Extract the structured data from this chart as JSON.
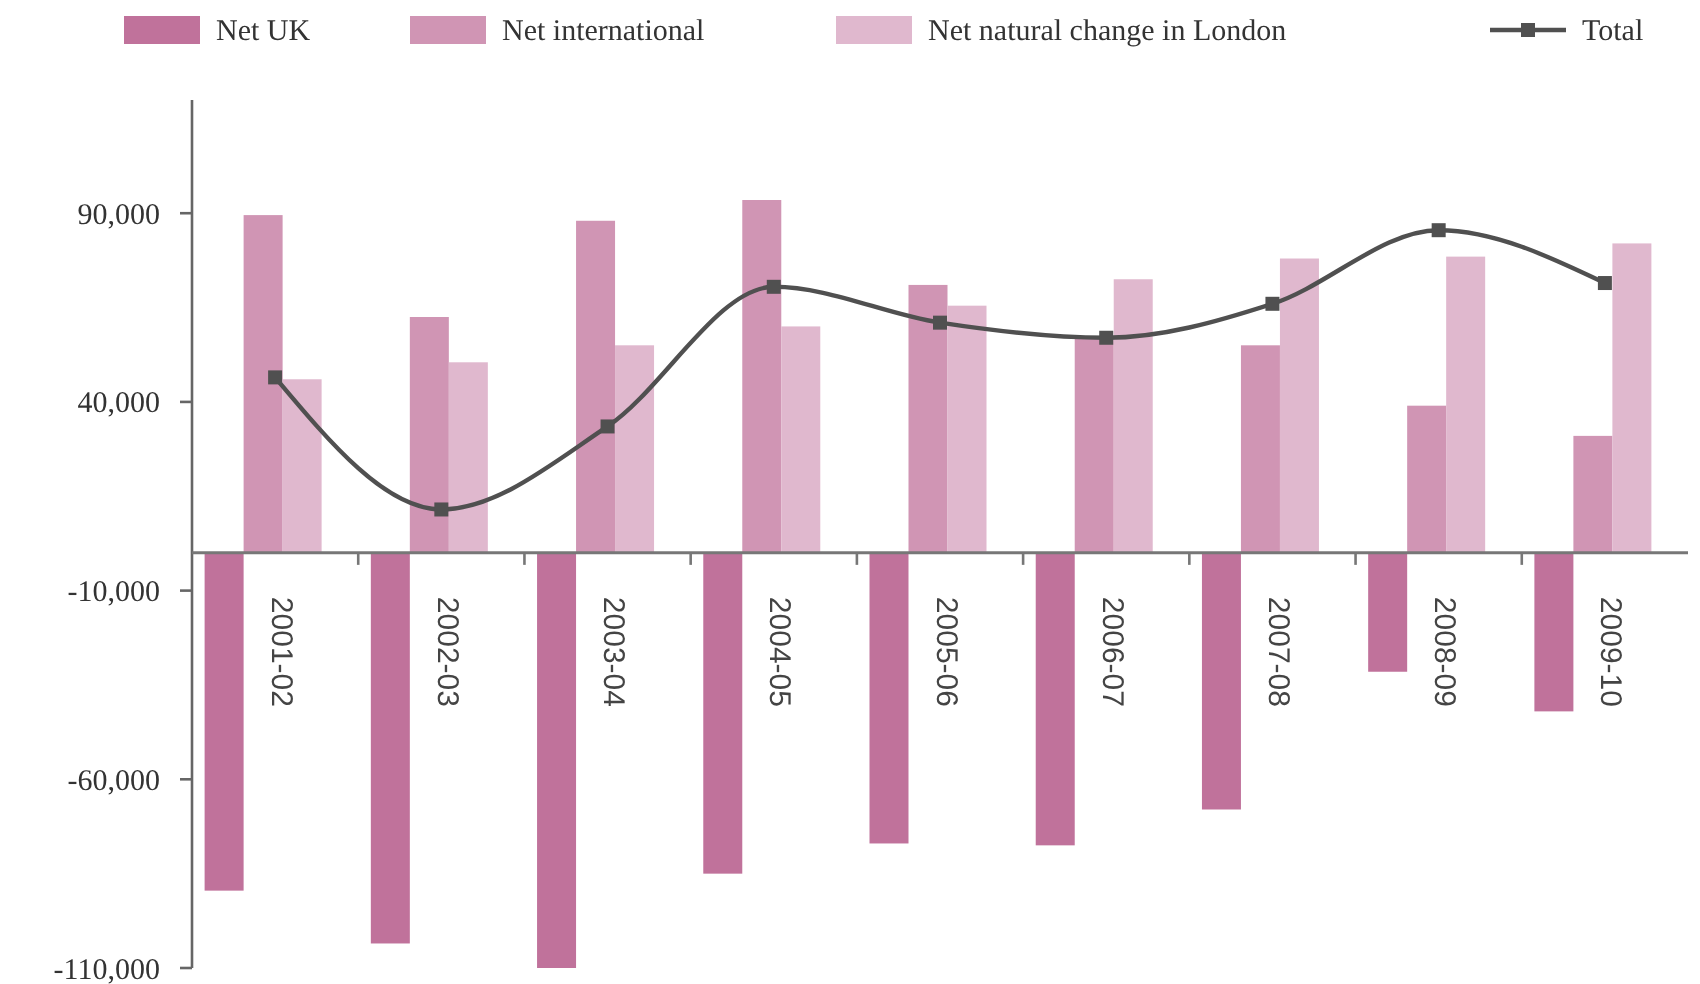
{
  "chart_data": {
    "type": "bar",
    "categories": [
      "2001-02",
      "2002-03",
      "2003-04",
      "2004-05",
      "2005-06",
      "2006-07",
      "2007-08",
      "2008-09",
      "2009-10"
    ],
    "series": [
      {
        "name": "Net UK",
        "color": "#c0729b",
        "values": [
          -89500,
          -103500,
          -110000,
          -85000,
          -77000,
          -77500,
          -68000,
          -31500,
          -42000
        ]
      },
      {
        "name": "Net international",
        "color": "#d095b4",
        "values": [
          89500,
          62500,
          88000,
          93500,
          71000,
          57000,
          55000,
          39000,
          31000
        ]
      },
      {
        "name": "Net natural change in London",
        "color": "#e0b8ce",
        "values": [
          46000,
          50500,
          55000,
          60000,
          65500,
          72500,
          78000,
          78500,
          82000
        ]
      },
      {
        "name": "Total",
        "type": "line",
        "color": "#505050",
        "marker": "square",
        "values": [
          46500,
          11500,
          33500,
          70500,
          61000,
          57000,
          66000,
          85500,
          71500
        ]
      }
    ],
    "ylim": [
      -110000,
      120000
    ],
    "yticks": [
      {
        "value": -110000,
        "label": "-110,000"
      },
      {
        "value": -60000,
        "label": "-60,000"
      },
      {
        "value": -10000,
        "label": "-10,000"
      },
      {
        "value": 40000,
        "label": "40,000"
      },
      {
        "value": 90000,
        "label": "90,000"
      }
    ],
    "grid": false,
    "legend": "top"
  }
}
